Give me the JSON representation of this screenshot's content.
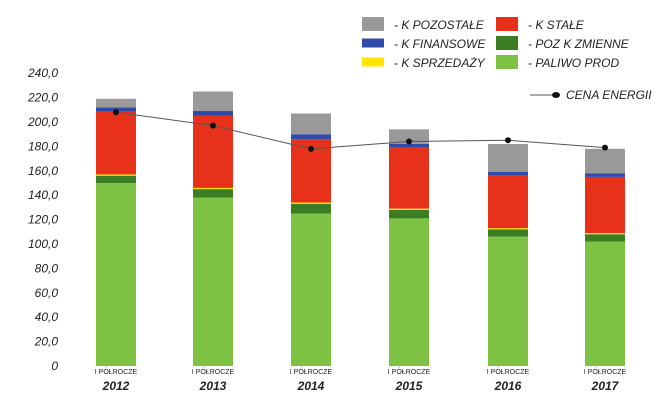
{
  "chart_data": {
    "type": "bar",
    "stacked": true,
    "categories": [
      {
        "top": "I PÓŁROCZE",
        "bottom": "2012"
      },
      {
        "top": "I PÓŁROCZE",
        "bottom": "2013"
      },
      {
        "top": "I PÓŁROCZE",
        "bottom": "2014"
      },
      {
        "top": "I PÓŁROCZE",
        "bottom": "2015"
      },
      {
        "top": "I PÓŁROCZE",
        "bottom": "2016"
      },
      {
        "top": "I PÓŁROCZE",
        "bottom": "2017"
      }
    ],
    "ylim": [
      0,
      240
    ],
    "yticks": [
      "0",
      "20,0",
      "40,0",
      "60,0",
      "80,0",
      "100,0",
      "120,0",
      "140,0",
      "160,0",
      "180,0",
      "200,0",
      "220,0",
      "240,0"
    ],
    "series": [
      {
        "name": "- PALIWO PROD",
        "color": "#7dc242",
        "values": [
          150,
          138,
          125,
          121,
          106,
          102
        ]
      },
      {
        "name": "- POZ K ZMIENNE",
        "color": "#3a7d22",
        "values": [
          6,
          7,
          8,
          7,
          6,
          6
        ]
      },
      {
        "name": "- K SPRZEDAŻY",
        "color": "#ffe600",
        "values": [
          1,
          1,
          1,
          1,
          1,
          1
        ]
      },
      {
        "name": "- K STAŁE",
        "color": "#e8311a",
        "values": [
          52,
          59,
          52,
          50,
          43,
          46
        ]
      },
      {
        "name": "- K FINANSOWE",
        "color": "#2f4aa8",
        "values": [
          3,
          4,
          4,
          3,
          3,
          3
        ]
      },
      {
        "name": "- K POZOSTAŁE",
        "color": "#999999",
        "values": [
          7,
          16,
          17,
          12,
          23,
          20
        ]
      }
    ],
    "line": {
      "name": "CENA ENERGII",
      "color": "#333333",
      "values": [
        208,
        197,
        178,
        184,
        185,
        179
      ]
    },
    "legend": {
      "rows": [
        [
          "- K POZOSTAŁE",
          "- K STAŁE"
        ],
        [
          "- K FINANSOWE",
          "- POZ K ZMIENNE"
        ],
        [
          "- K SPRZEDAŻY",
          "- PALIWO PROD"
        ]
      ],
      "line_label": "CENA ENERGII",
      "placement": "top-right"
    }
  }
}
